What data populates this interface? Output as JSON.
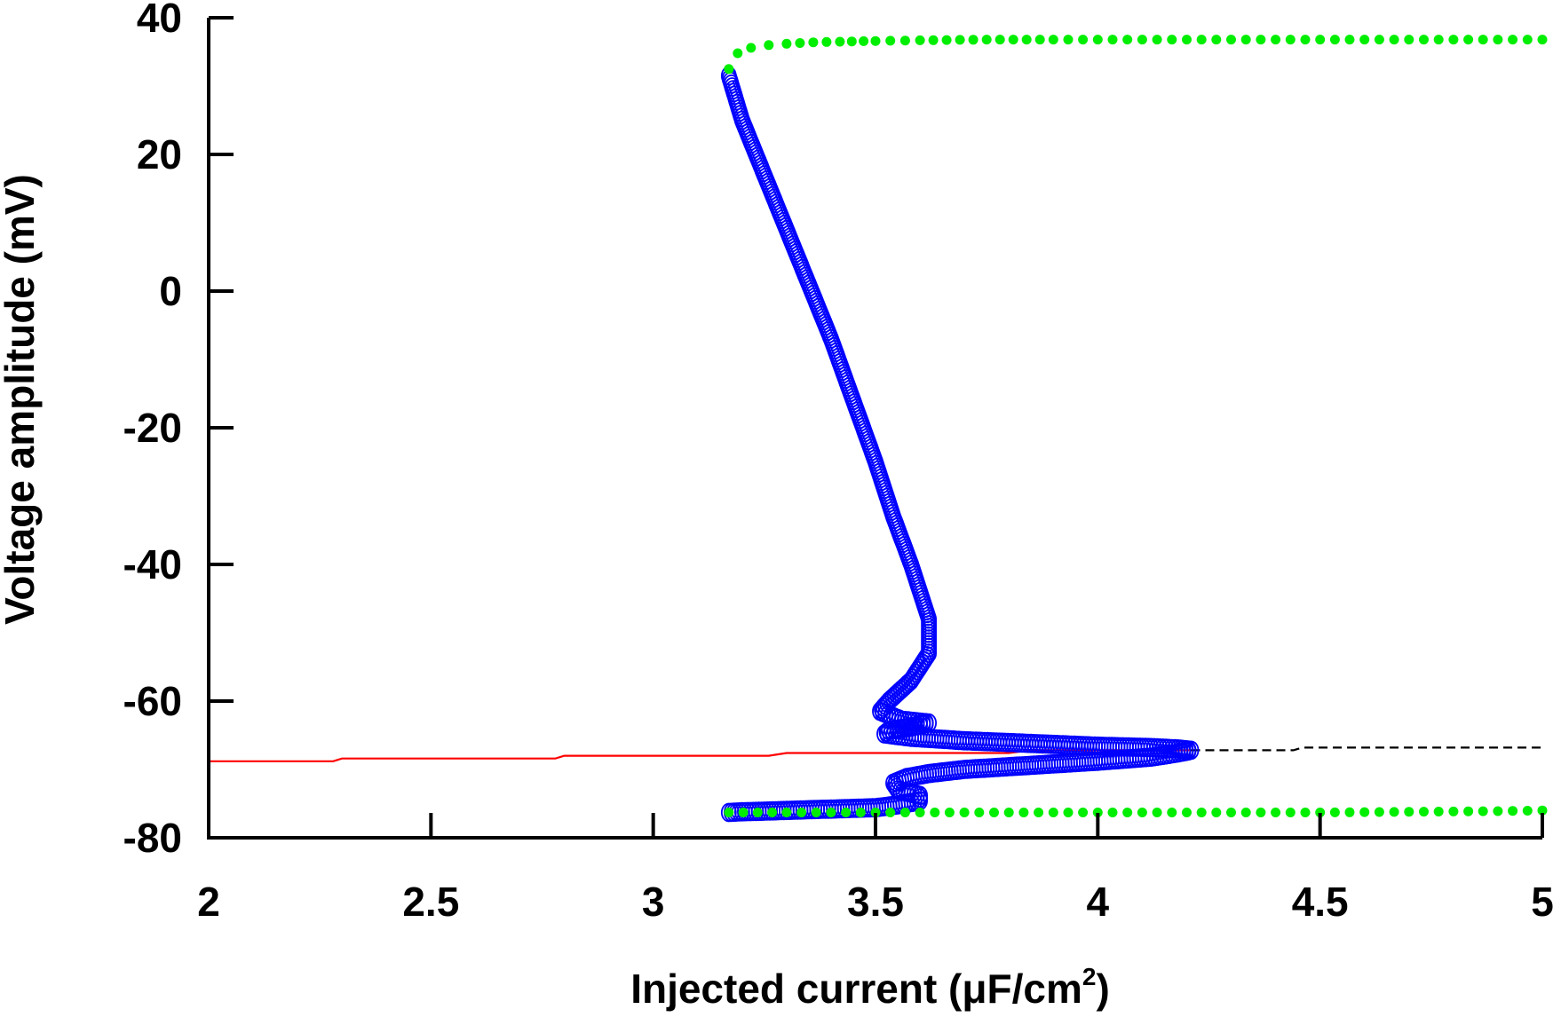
{
  "chart_data": {
    "type": "scatter",
    "xlabel": "Injected current (μF/cm",
    "xlabel_superscript": "2",
    "xlabel_suffix": ")",
    "ylabel": "Voltage amplitude (mV)",
    "xlim": [
      2,
      5
    ],
    "ylim": [
      -80,
      40
    ],
    "x_ticks": [
      2,
      2.5,
      3,
      3.5,
      4,
      4.5,
      5
    ],
    "x_tick_labels": [
      "2",
      "2.5",
      "3",
      "3.5",
      "4",
      "4.5",
      "5"
    ],
    "y_ticks": [
      40,
      20,
      0,
      -20,
      -40,
      -60,
      -80
    ],
    "y_tick_labels": [
      "40",
      "20",
      "0",
      "-20",
      "-40",
      "-60",
      "-80"
    ],
    "grid": false,
    "legend": "none",
    "colors": {
      "stable_rest": "#ff0000",
      "unstable_rest": "#000000",
      "unstable_periodic": "#0000ff",
      "stable_periodic": "#00ee00"
    },
    "series": [
      {
        "style": "solid-line",
        "color": "#ff0000",
        "x": [
          2.0,
          2.28,
          2.3,
          2.78,
          2.8,
          3.26,
          3.3,
          3.8,
          3.85,
          4.21
        ],
        "y": [
          -68.8,
          -68.8,
          -68.4,
          -68.4,
          -68.0,
          -68.0,
          -67.6,
          -67.6,
          -67.2,
          -67.2
        ]
      },
      {
        "style": "dashed-line",
        "color": "#000000",
        "x": [
          4.21,
          4.44,
          4.46,
          5.0
        ],
        "y": [
          -67.2,
          -67.2,
          -66.8,
          -66.8
        ]
      },
      {
        "style": "open-circles",
        "color": "#0000ff",
        "x": [
          3.17,
          3.2,
          3.25,
          3.3,
          3.35,
          3.4,
          3.45,
          3.5,
          3.54,
          3.58,
          3.62,
          3.62,
          3.58,
          3.53,
          3.51,
          3.56,
          3.62,
          3.58,
          3.53,
          3.52,
          3.58,
          3.7,
          3.85,
          4.0,
          4.12,
          4.18,
          4.21,
          4.18,
          4.12,
          4.0,
          3.85,
          3.7,
          3.62,
          3.57,
          3.54,
          3.55,
          3.6,
          3.6,
          3.55,
          3.5,
          3.4,
          3.3,
          3.2,
          3.17
        ],
        "y": [
          31.5,
          25.0,
          17.0,
          9.0,
          1.0,
          -7.0,
          -16.0,
          -25.0,
          -33.0,
          -40.0,
          -48.0,
          -53.0,
          -57.0,
          -60.0,
          -61.5,
          -62.8,
          -63.2,
          -63.8,
          -64.3,
          -64.8,
          -65.3,
          -65.8,
          -66.2,
          -66.6,
          -66.8,
          -67.0,
          -67.2,
          -67.6,
          -68.2,
          -68.8,
          -69.4,
          -70.0,
          -70.6,
          -71.2,
          -72.0,
          -73.0,
          -73.8,
          -74.6,
          -75.2,
          -75.6,
          -75.8,
          -76.0,
          -76.2,
          -76.3
        ]
      },
      {
        "style": "filled-dots",
        "color": "#00ee00",
        "x": [
          3.17,
          3.19,
          3.22,
          3.26,
          3.3,
          3.36,
          3.42,
          3.5,
          3.6,
          3.75,
          3.9,
          4.1,
          4.3,
          4.5,
          4.7,
          4.9,
          5.0
        ],
        "y": [
          32.5,
          34.8,
          35.6,
          36.0,
          36.2,
          36.4,
          36.5,
          36.6,
          36.7,
          36.8,
          36.8,
          36.8,
          36.8,
          36.8,
          36.8,
          36.8,
          36.8
        ]
      },
      {
        "style": "filled-dots",
        "color": "#00ee00",
        "x": [
          3.17,
          3.3,
          3.5,
          3.7,
          3.9,
          4.1,
          4.3,
          4.5,
          4.7,
          4.9,
          5.0
        ],
        "y": [
          -76.3,
          -76.3,
          -76.3,
          -76.3,
          -76.3,
          -76.3,
          -76.3,
          -76.3,
          -76.2,
          -76.1,
          -76.0
        ]
      }
    ]
  }
}
